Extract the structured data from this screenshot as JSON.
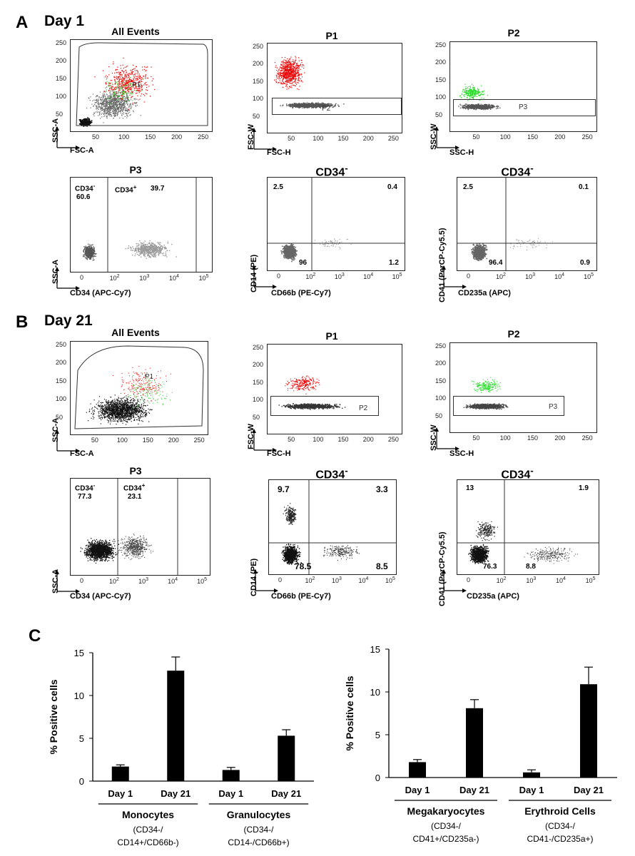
{
  "panels": {
    "A": {
      "letter": "A",
      "day": "Day 1"
    },
    "B": {
      "letter": "B",
      "day": "Day 21"
    },
    "C": {
      "letter": "C"
    }
  },
  "plot_titles": {
    "all_events": "All Events",
    "p1": "P1",
    "p2": "P2",
    "p3": "P3",
    "cd34neg": "CD34",
    "cd34neg_sup": "-"
  },
  "axis_labels": {
    "ssc_a": "SSC-A",
    "fsc_a": "FSC-A",
    "fsc_w": "FSC-W",
    "fsc_h": "FSC-H",
    "ssc_w": "SSC-W",
    "ssc_h": "SSC-H",
    "cd34_apc_cy7": "CD34 (APC-Cy7)",
    "cd14_pe": "CD14 (PE)",
    "cd66b_pe_cy7": "CD66b (PE-Cy7)",
    "cd41_percp": "CD41 (PerCP-Cy5.5)",
    "cd235a_apc": "CD235a (APC)"
  },
  "linear_ticks": [
    "50",
    "100",
    "150",
    "200",
    "250"
  ],
  "linear_yticks": [
    "250",
    "200",
    "150",
    "100",
    "50"
  ],
  "log_ticks": [
    "0",
    "10",
    "10",
    "10",
    "10"
  ],
  "log_exps": [
    "",
    "2",
    "3",
    "4",
    "5"
  ],
  "gate_labels": {
    "p1": "P1",
    "p2": "P2",
    "p3": "P3"
  },
  "day1": {
    "p3": {
      "neg_label": "CD34",
      "neg_value": "60.6",
      "pos_label": "CD34",
      "pos_value": "39.7"
    },
    "cd66b": {
      "ul": "2.5",
      "ur": "0.4",
      "ll": "96",
      "lr": "1.2"
    },
    "cd235a": {
      "ul": "2.5",
      "ur": "0.1",
      "ll": "96.4",
      "lr": "0.9"
    }
  },
  "day21": {
    "p3": {
      "neg_label": "CD34",
      "neg_value": "77.3",
      "pos_label": "CD34",
      "pos_value": "23.1"
    },
    "cd66b": {
      "ul": "9.7",
      "ur": "3.3",
      "ll": "78.5",
      "lr": "8.5"
    },
    "cd235a": {
      "ul": "13",
      "ur": "1.9",
      "ll": "76.3",
      "lr": "8.8"
    }
  },
  "chart_data": [
    {
      "type": "bar",
      "title": "",
      "ylabel": "% Positive cells",
      "ylim": [
        0,
        15
      ],
      "yticks": [
        "0",
        "5",
        "10",
        "15"
      ],
      "categories": [
        "Day 1",
        "Day 21",
        "Day 1",
        "Day 21"
      ],
      "values": [
        1.7,
        12.9,
        1.3,
        5.3
      ],
      "errors": [
        0.2,
        1.6,
        0.3,
        0.7
      ],
      "groups": [
        {
          "name": "Monocytes",
          "line1": "(CD34-/",
          "line2": "CD14+/CD66b-)"
        },
        {
          "name": "Granulocytes",
          "line1": "(CD34-/",
          "line2": "CD14-/CD66b+)"
        }
      ]
    },
    {
      "type": "bar",
      "title": "",
      "ylabel": "% Positive cells",
      "ylim": [
        0,
        15
      ],
      "yticks": [
        "0",
        "5",
        "10",
        "15"
      ],
      "categories": [
        "Day 1",
        "Day 21",
        "Day 1",
        "Day 21"
      ],
      "values": [
        1.8,
        8.1,
        0.6,
        10.9
      ],
      "errors": [
        0.3,
        1.0,
        0.3,
        2.0
      ],
      "groups": [
        {
          "name": "Megakaryocytes",
          "line1": "(CD34-/",
          "line2": "CD41+/CD235a-)"
        },
        {
          "name": "Erythroid Cells",
          "line1": "(CD34-/",
          "line2": "CD41-/CD235a+)"
        }
      ]
    }
  ]
}
